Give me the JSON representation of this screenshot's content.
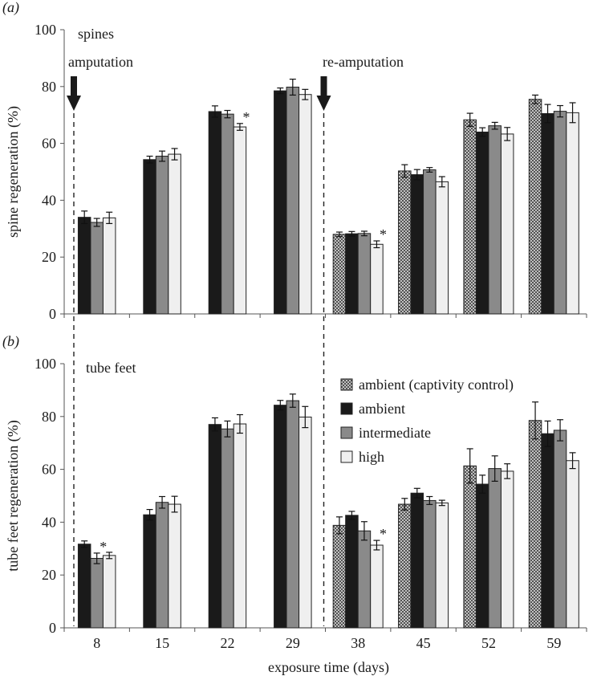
{
  "chart_data": [
    {
      "type": "bar",
      "panel_label": "(a)",
      "panel_title": "spines",
      "ylabel": "spine regeneration (%)",
      "ylim": [
        0,
        100
      ],
      "yticks": [
        0,
        20,
        40,
        60,
        80,
        100
      ],
      "categories": [
        "8",
        "15",
        "22",
        "29",
        "38",
        "45",
        "52",
        "59"
      ],
      "series": [
        {
          "name": "ambient (captivity control)",
          "values": [
            null,
            null,
            null,
            null,
            28,
            50.3,
            68.3,
            75.5
          ],
          "errors": [
            null,
            null,
            null,
            null,
            0.8,
            2.2,
            2.3,
            1.5
          ]
        },
        {
          "name": "ambient",
          "values": [
            34,
            54.3,
            71.2,
            78.5,
            28.2,
            49,
            64,
            70.5
          ],
          "errors": [
            2.2,
            1.2,
            2,
            1,
            0.8,
            1.8,
            1.5,
            3.2
          ]
        },
        {
          "name": "intermediate",
          "values": [
            32.2,
            55.5,
            70.3,
            79.8,
            28.3,
            50.7,
            66.2,
            71.3
          ],
          "errors": [
            1.4,
            1.8,
            1.3,
            2.8,
            0.8,
            0.8,
            1.2,
            2
          ]
        },
        {
          "name": "high",
          "values": [
            33.8,
            56.2,
            65.8,
            77.2,
            24.5,
            46.5,
            63.3,
            70.8
          ],
          "errors": [
            2,
            2,
            1.2,
            1.8,
            1.2,
            1.8,
            2.3,
            3.5
          ]
        }
      ],
      "significance_marks": [
        {
          "category": "22",
          "series": "high",
          "symbol": "*"
        },
        {
          "category": "38",
          "series": "high",
          "symbol": "*"
        }
      ],
      "annotations": [
        {
          "text": "amputation",
          "category": "8"
        },
        {
          "text": "re-amputation",
          "category": "38"
        }
      ]
    },
    {
      "type": "bar",
      "panel_label": "(b)",
      "panel_title": "tube feet",
      "xlabel": "exposure time (days)",
      "ylabel": "tube feet regeneration (%)",
      "ylim": [
        0,
        100
      ],
      "yticks": [
        0,
        20,
        40,
        60,
        80,
        100
      ],
      "categories": [
        "8",
        "15",
        "22",
        "29",
        "38",
        "45",
        "52",
        "59"
      ],
      "series": [
        {
          "name": "ambient (captivity control)",
          "values": [
            null,
            null,
            null,
            null,
            38.8,
            46.8,
            61.3,
            78.5
          ],
          "errors": [
            null,
            null,
            null,
            null,
            3.2,
            2.2,
            6.5,
            7
          ]
        },
        {
          "name": "ambient",
          "values": [
            31.7,
            42.8,
            77,
            84.3,
            42.6,
            51,
            54.4,
            73.5
          ],
          "errors": [
            1.2,
            2,
            2.5,
            1.8,
            1.5,
            1.8,
            3.4,
            4.8
          ]
        },
        {
          "name": "intermediate",
          "values": [
            26.3,
            47.5,
            75.3,
            86,
            36.7,
            48.2,
            60.3,
            74.8
          ],
          "errors": [
            2,
            2.2,
            3,
            2.5,
            3.5,
            1.5,
            4.8,
            4
          ]
        },
        {
          "name": "high",
          "values": [
            27.4,
            46.8,
            77.2,
            79.8,
            31.3,
            47.3,
            59.3,
            63.3
          ],
          "errors": [
            1.2,
            3,
            3.5,
            4,
            1.8,
            1,
            2.8,
            3
          ]
        }
      ],
      "significance_marks": [
        {
          "category": "8",
          "series": "intermediate",
          "symbol": "*"
        },
        {
          "category": "38",
          "series": "high",
          "symbol": "*"
        }
      ],
      "legend": {
        "placement": "right",
        "entries": [
          "ambient (captivity control)",
          "ambient",
          "intermediate",
          "high"
        ]
      }
    }
  ],
  "colors": {
    "ambient (captivity control)": "#9a9a9a",
    "ambient": "#1a1a1a",
    "intermediate": "#8a8a8a",
    "high": "#efefef"
  }
}
